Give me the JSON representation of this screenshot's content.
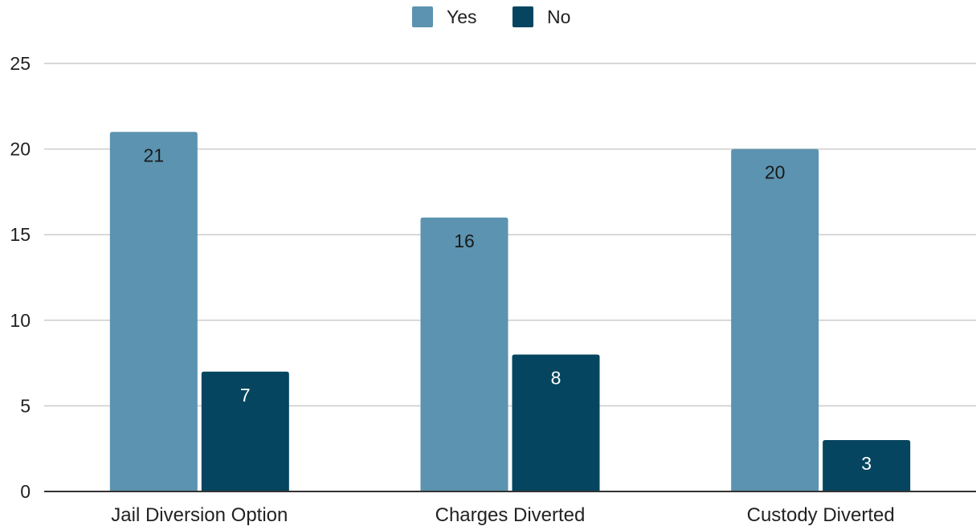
{
  "chart_data": {
    "type": "bar",
    "title": "",
    "xlabel": "",
    "ylabel": "",
    "categories": [
      "Jail Diversion Option",
      "Charges Diverted",
      "Custody Diverted"
    ],
    "series": [
      {
        "name": "Yes",
        "values": [
          21,
          16,
          20
        ],
        "color": "#5b93b0",
        "label_color": "#1a1a1a"
      },
      {
        "name": "No",
        "values": [
          7,
          8,
          3
        ],
        "color": "#05455f",
        "label_color": "#ffffff"
      }
    ],
    "ylim": [
      0,
      25
    ],
    "yticks": [
      0,
      5,
      10,
      15,
      20,
      25
    ],
    "grid": true,
    "legend_position": "top-center",
    "colors": {
      "gridline": "#cccccc",
      "axis": "#333333"
    }
  }
}
